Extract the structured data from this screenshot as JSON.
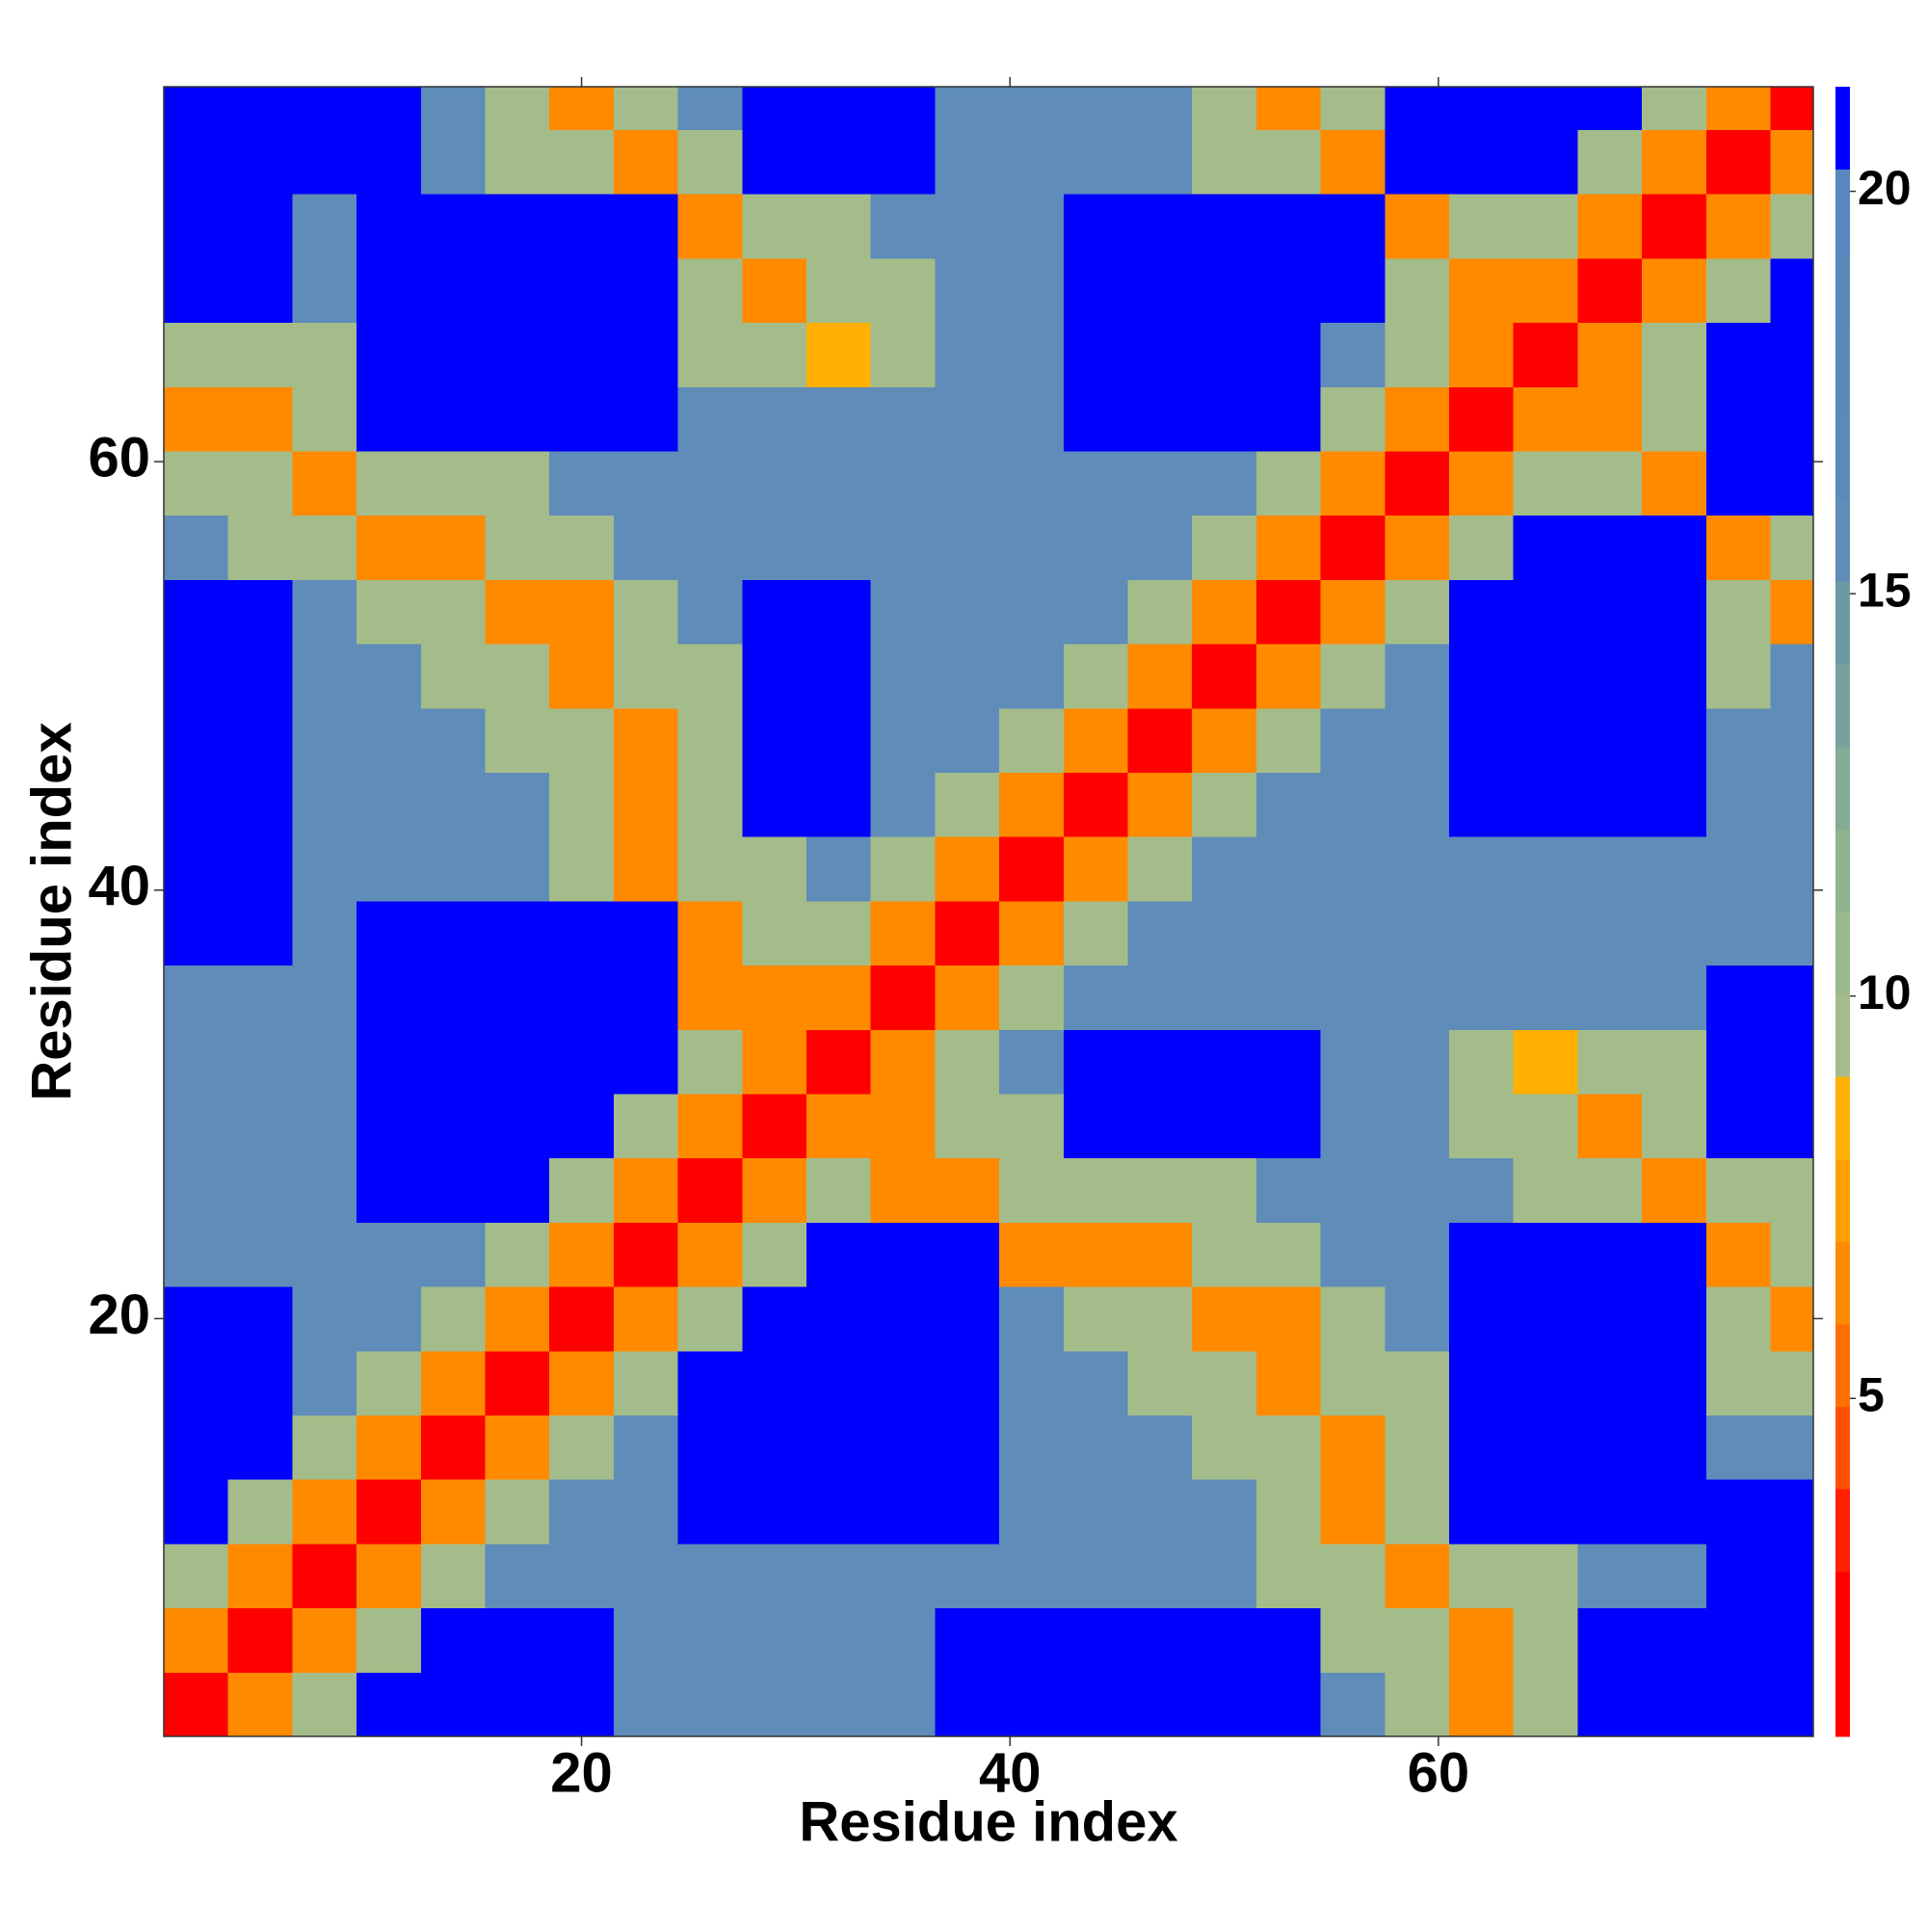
{
  "chart_data": {
    "type": "heatmap",
    "xlabel": "Residue index",
    "ylabel": "Residue index",
    "x": [
      2,
      5,
      8,
      11,
      14,
      17,
      20,
      23,
      26,
      29,
      32,
      35,
      38,
      41,
      44,
      47,
      50,
      53,
      56,
      59,
      62,
      65,
      68,
      71,
      74,
      77
    ],
    "y": [
      2,
      5,
      8,
      11,
      14,
      17,
      20,
      23,
      26,
      29,
      32,
      35,
      38,
      41,
      44,
      47,
      50,
      53,
      56,
      59,
      62,
      65,
      68,
      71,
      74,
      77
    ],
    "values": [
      [
        1,
        6,
        10,
        21,
        21,
        21,
        21,
        16,
        16,
        16,
        16,
        16,
        21,
        21,
        21,
        21,
        21,
        21,
        16,
        10,
        6,
        10,
        21,
        21,
        21,
        21
      ],
      [
        6,
        1,
        6,
        10,
        21,
        21,
        21,
        16,
        16,
        16,
        16,
        16,
        21,
        21,
        21,
        21,
        21,
        21,
        10,
        10,
        6,
        10,
        21,
        21,
        21,
        21
      ],
      [
        10,
        6,
        1,
        6,
        10,
        16,
        16,
        16,
        16,
        16,
        16,
        16,
        16,
        16,
        16,
        16,
        16,
        10,
        10,
        6,
        10,
        10,
        16,
        16,
        21,
        21
      ],
      [
        21,
        10,
        6,
        1,
        6,
        10,
        16,
        16,
        21,
        21,
        21,
        21,
        21,
        16,
        16,
        16,
        16,
        10,
        6,
        10,
        21,
        21,
        21,
        21,
        21,
        21
      ],
      [
        21,
        21,
        10,
        6,
        1,
        6,
        10,
        16,
        21,
        21,
        21,
        21,
        21,
        16,
        16,
        16,
        10,
        10,
        6,
        10,
        21,
        21,
        21,
        21,
        16,
        16
      ],
      [
        21,
        21,
        16,
        10,
        6,
        1,
        6,
        10,
        21,
        21,
        21,
        21,
        21,
        16,
        16,
        10,
        10,
        6,
        10,
        10,
        21,
        21,
        21,
        21,
        10,
        10
      ],
      [
        21,
        21,
        16,
        16,
        10,
        6,
        1,
        6,
        10,
        21,
        21,
        21,
        21,
        16,
        10,
        10,
        6,
        6,
        10,
        16,
        21,
        21,
        21,
        21,
        10,
        6
      ],
      [
        16,
        16,
        16,
        16,
        16,
        10,
        6,
        1,
        6,
        10,
        21,
        21,
        21,
        6,
        6,
        6,
        10,
        10,
        16,
        16,
        21,
        21,
        21,
        21,
        6,
        10
      ],
      [
        16,
        16,
        16,
        21,
        21,
        21,
        10,
        6,
        1,
        6,
        10,
        6,
        6,
        10,
        10,
        10,
        10,
        16,
        16,
        16,
        16,
        10,
        10,
        6,
        10,
        10
      ],
      [
        16,
        16,
        16,
        21,
        21,
        21,
        21,
        10,
        6,
        1,
        6,
        6,
        10,
        10,
        21,
        21,
        21,
        21,
        16,
        16,
        10,
        10,
        6,
        10,
        21,
        21
      ],
      [
        16,
        16,
        16,
        21,
        21,
        21,
        21,
        21,
        10,
        6,
        1,
        6,
        10,
        16,
        21,
        21,
        21,
        21,
        16,
        16,
        10,
        8,
        10,
        10,
        21,
        21
      ],
      [
        16,
        16,
        16,
        21,
        21,
        21,
        21,
        21,
        6,
        6,
        6,
        1,
        6,
        10,
        16,
        16,
        16,
        16,
        16,
        16,
        16,
        16,
        16,
        16,
        21,
        21
      ],
      [
        21,
        21,
        16,
        21,
        21,
        21,
        21,
        21,
        6,
        10,
        10,
        6,
        1,
        6,
        10,
        16,
        16,
        16,
        16,
        16,
        16,
        16,
        16,
        16,
        16,
        16
      ],
      [
        21,
        21,
        16,
        16,
        16,
        16,
        10,
        6,
        10,
        10,
        16,
        10,
        6,
        1,
        6,
        10,
        16,
        16,
        16,
        16,
        16,
        16,
        16,
        16,
        16,
        16
      ],
      [
        21,
        21,
        16,
        16,
        16,
        16,
        10,
        6,
        10,
        21,
        21,
        16,
        10,
        6,
        1,
        6,
        10,
        16,
        16,
        16,
        21,
        21,
        21,
        21,
        16,
        16
      ],
      [
        21,
        21,
        16,
        16,
        16,
        10,
        10,
        6,
        10,
        21,
        21,
        16,
        16,
        10,
        6,
        1,
        6,
        10,
        16,
        16,
        21,
        21,
        21,
        21,
        16,
        16
      ],
      [
        21,
        21,
        16,
        16,
        10,
        10,
        6,
        10,
        10,
        21,
        21,
        16,
        16,
        16,
        10,
        6,
        1,
        6,
        10,
        16,
        21,
        21,
        21,
        21,
        10,
        16
      ],
      [
        21,
        21,
        16,
        10,
        10,
        6,
        6,
        10,
        16,
        21,
        21,
        16,
        16,
        16,
        16,
        10,
        6,
        1,
        6,
        10,
        21,
        21,
        21,
        21,
        10,
        6
      ],
      [
        16,
        10,
        10,
        6,
        6,
        10,
        10,
        16,
        16,
        16,
        16,
        16,
        16,
        16,
        16,
        16,
        10,
        6,
        1,
        6,
        10,
        21,
        21,
        21,
        6,
        10
      ],
      [
        10,
        10,
        6,
        10,
        10,
        10,
        16,
        16,
        16,
        16,
        16,
        16,
        16,
        16,
        16,
        16,
        16,
        10,
        6,
        1,
        6,
        10,
        10,
        6,
        21,
        21
      ],
      [
        6,
        6,
        10,
        21,
        21,
        21,
        21,
        21,
        16,
        16,
        16,
        16,
        16,
        16,
        21,
        21,
        21,
        21,
        10,
        6,
        1,
        6,
        6,
        10,
        21,
        21
      ],
      [
        10,
        10,
        10,
        21,
        21,
        21,
        21,
        21,
        10,
        10,
        8,
        10,
        16,
        16,
        21,
        21,
        21,
        21,
        16,
        10,
        6,
        1,
        6,
        10,
        21,
        21
      ],
      [
        21,
        21,
        16,
        21,
        21,
        21,
        21,
        21,
        10,
        6,
        10,
        10,
        16,
        16,
        21,
        21,
        21,
        21,
        21,
        10,
        6,
        6,
        1,
        6,
        10,
        21
      ],
      [
        21,
        21,
        16,
        21,
        21,
        21,
        21,
        21,
        6,
        10,
        10,
        16,
        16,
        16,
        21,
        21,
        21,
        21,
        21,
        6,
        10,
        10,
        6,
        1,
        6,
        10
      ],
      [
        21,
        21,
        21,
        21,
        16,
        10,
        10,
        6,
        10,
        21,
        21,
        21,
        16,
        16,
        16,
        16,
        10,
        10,
        6,
        21,
        21,
        21,
        10,
        6,
        1,
        6
      ],
      [
        21,
        21,
        21,
        21,
        16,
        10,
        6,
        10,
        16,
        21,
        21,
        21,
        16,
        16,
        16,
        16,
        10,
        6,
        10,
        21,
        21,
        21,
        21,
        10,
        6,
        1
      ]
    ],
    "xlim": [
      0.5,
      77.5
    ],
    "ylim": [
      0.5,
      77.5
    ],
    "xticks": [
      20,
      40,
      60
    ],
    "yticks": [
      20,
      40,
      60
    ],
    "colorbar": {
      "lim": [
        0.8,
        21.3
      ],
      "ticks": [
        5,
        10,
        15,
        20
      ],
      "colors": [
        "#ff0000",
        "#ff0000",
        "#ff2000",
        "#ff5000",
        "#ff7000",
        "#ff8a00",
        "#ffa000",
        "#ffb000",
        "#a4bc8a",
        "#9ab98c",
        "#8fb290",
        "#84ab96",
        "#78a19c",
        "#6d99a2",
        "#5f8cb8",
        "#5d8bb9",
        "#5b8aba",
        "#5a88bc",
        "#5886be",
        "#0000ff"
      ]
    }
  }
}
